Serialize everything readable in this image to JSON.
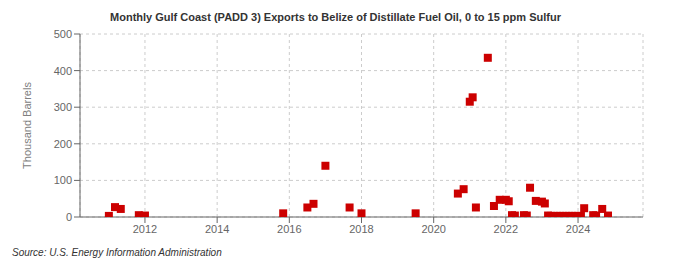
{
  "chart_data": {
    "type": "scatter",
    "title": "Monthly Gulf Coast (PADD 3) Exports to Belize of Distillate Fuel Oil, 0 to 15 ppm Sulfur",
    "ylabel": "Thousand Barrels",
    "annotations": [
      "Source: U.S. Energy Information Administration"
    ],
    "color": "#cc0000",
    "marker": "square",
    "grid": true,
    "xlim": [
      2010.2,
      2025.8
    ],
    "xticks": [
      2012,
      2014,
      2016,
      2018,
      2020,
      2022,
      2024
    ],
    "ylim": [
      0,
      500
    ],
    "yticks": [
      0,
      100,
      200,
      300,
      400,
      500
    ],
    "x": [
      2011.0,
      2011.17,
      2011.33,
      2011.83,
      2012.0,
      2015.83,
      2016.5,
      2016.67,
      2017.0,
      2017.67,
      2018.0,
      2019.5,
      2020.67,
      2020.83,
      2021.0,
      2021.08,
      2021.17,
      2021.5,
      2021.67,
      2021.83,
      2022.0,
      2022.08,
      2022.17,
      2022.25,
      2022.5,
      2022.58,
      2022.67,
      2022.83,
      2023.0,
      2023.08,
      2023.17,
      2023.25,
      2023.33,
      2023.42,
      2023.5,
      2023.58,
      2023.67,
      2023.75,
      2023.83,
      2023.92,
      2024.0,
      2024.08,
      2024.17,
      2024.42,
      2024.5,
      2024.67,
      2024.83
    ],
    "values": [
      3,
      27,
      22,
      5,
      4,
      10,
      26,
      36,
      140,
      26,
      10,
      10,
      64,
      76,
      315,
      327,
      26,
      435,
      30,
      47,
      47,
      43,
      5,
      4,
      5,
      4,
      80,
      44,
      42,
      37,
      4,
      3,
      3,
      3,
      3,
      3,
      3,
      3,
      3,
      3,
      3,
      3,
      24,
      5,
      4,
      22,
      4
    ]
  }
}
